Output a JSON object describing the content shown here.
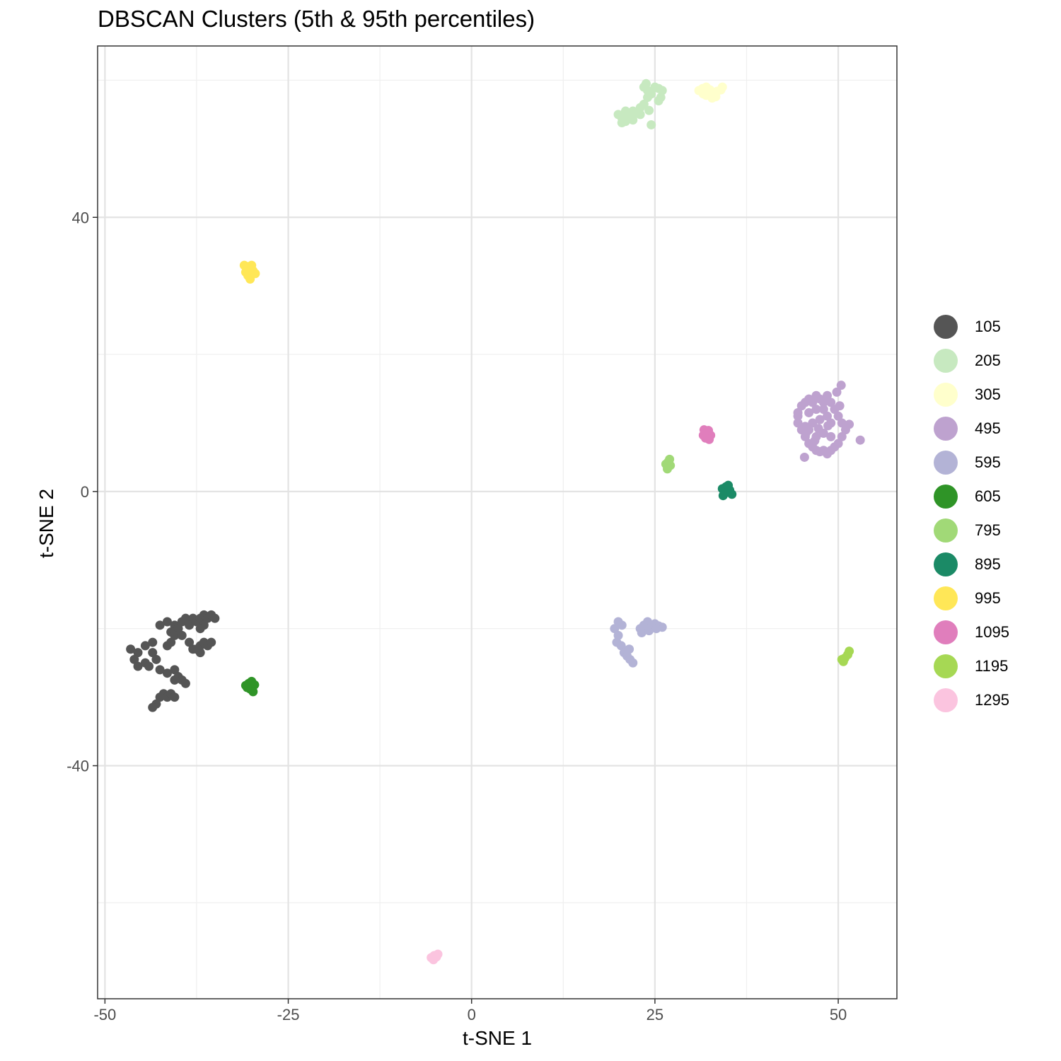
{
  "chart_data": {
    "type": "scatter",
    "title": "DBSCAN Clusters (5th & 95th percentiles)",
    "xlabel": "t-SNE 1",
    "ylabel": "t-SNE 2",
    "xlim": [
      -51,
      58
    ],
    "ylim": [
      -74,
      65
    ],
    "x_ticks": [
      -50,
      -25,
      0,
      25,
      50
    ],
    "x_tick_labels": [
      "-50",
      "-25",
      "0",
      "25",
      "50"
    ],
    "y_ticks": [
      40,
      0,
      -40
    ],
    "y_tick_labels": [
      "40",
      "0",
      "-40"
    ],
    "grid": true,
    "legend_position": "right",
    "series": [
      {
        "name": "105",
        "color": "#555555",
        "points": [
          [
            -46.5,
            -23
          ],
          [
            -45.5,
            -23.5
          ],
          [
            -46,
            -24.5
          ],
          [
            -45.5,
            -25.5
          ],
          [
            -44.5,
            -25
          ],
          [
            -44,
            -25.5
          ],
          [
            -43.5,
            -23.5
          ],
          [
            -43,
            -24.5
          ],
          [
            -44.5,
            -22.5
          ],
          [
            -43.5,
            -22
          ],
          [
            -42.5,
            -19.5
          ],
          [
            -41.5,
            -19
          ],
          [
            -40.5,
            -19.5
          ],
          [
            -41,
            -20.5
          ],
          [
            -40,
            -20
          ],
          [
            -39.5,
            -19
          ],
          [
            -39,
            -18.5
          ],
          [
            -38.5,
            -19.5
          ],
          [
            -38,
            -18.5
          ],
          [
            -37.5,
            -19
          ],
          [
            -37,
            -18.5
          ],
          [
            -36.5,
            -18
          ],
          [
            -36,
            -18.5
          ],
          [
            -35.5,
            -18
          ],
          [
            -35,
            -18.5
          ],
          [
            -36.5,
            -19.5
          ],
          [
            -37,
            -20
          ],
          [
            -41,
            -22
          ],
          [
            -41.5,
            -22.5
          ],
          [
            -40.5,
            -21
          ],
          [
            -39.5,
            -21
          ],
          [
            -38.5,
            -22
          ],
          [
            -38,
            -23
          ],
          [
            -37.5,
            -23
          ],
          [
            -37,
            -22.5
          ],
          [
            -36.5,
            -22
          ],
          [
            -36,
            -22.5
          ],
          [
            -35.5,
            -22
          ],
          [
            -37,
            -23.5
          ],
          [
            -42.5,
            -26
          ],
          [
            -41.5,
            -26.5
          ],
          [
            -40.5,
            -26
          ],
          [
            -40,
            -27
          ],
          [
            -39.5,
            -27.5
          ],
          [
            -39,
            -28
          ],
          [
            -40.5,
            -27.5
          ],
          [
            -42,
            -29.5
          ],
          [
            -42.5,
            -30
          ],
          [
            -43,
            -31
          ],
          [
            -43.5,
            -31.5
          ],
          [
            -41.5,
            -30
          ],
          [
            -41,
            -29.5
          ],
          [
            -40.5,
            -30
          ]
        ]
      },
      {
        "name": "205",
        "color": "#c7e9c0",
        "points": [
          [
            20,
            55
          ],
          [
            20.5,
            54.5
          ],
          [
            21,
            55.5
          ],
          [
            21.5,
            55
          ],
          [
            22,
            55.5
          ],
          [
            22.5,
            55.2
          ],
          [
            23,
            56
          ],
          [
            23.5,
            56.5
          ],
          [
            24,
            57.5
          ],
          [
            24.5,
            58
          ],
          [
            24,
            58.5
          ],
          [
            23.5,
            59
          ],
          [
            23.8,
            59.5
          ],
          [
            25,
            59
          ],
          [
            25.5,
            58.8
          ],
          [
            26,
            58.5
          ],
          [
            25.8,
            57.5
          ],
          [
            25.5,
            57
          ],
          [
            21,
            54
          ],
          [
            20.5,
            53.8
          ],
          [
            22,
            54.2
          ],
          [
            24.5,
            53.5
          ],
          [
            23,
            55
          ],
          [
            24.2,
            55.6
          ]
        ]
      },
      {
        "name": "305",
        "color": "#ffffcc",
        "points": [
          [
            31,
            58.5
          ],
          [
            31.5,
            58.8
          ],
          [
            32,
            59
          ],
          [
            32.5,
            58.6
          ],
          [
            33,
            58.2
          ],
          [
            33.5,
            58.4
          ],
          [
            34,
            58.6
          ],
          [
            32,
            57.8
          ],
          [
            32.8,
            57.4
          ],
          [
            33.3,
            57.6
          ],
          [
            31.6,
            58
          ],
          [
            34.2,
            59
          ]
        ]
      },
      {
        "name": "495",
        "color": "#bea2cf",
        "points": [
          [
            44.5,
            11.5
          ],
          [
            45,
            12.5
          ],
          [
            45.5,
            13
          ],
          [
            46,
            13.5
          ],
          [
            46.5,
            13
          ],
          [
            47,
            14
          ],
          [
            47.5,
            13.5
          ],
          [
            48,
            13
          ],
          [
            48.5,
            14
          ],
          [
            49,
            13
          ],
          [
            49.5,
            12
          ],
          [
            50,
            11
          ],
          [
            50.5,
            10
          ],
          [
            51,
            9
          ],
          [
            50.5,
            8
          ],
          [
            50,
            7
          ],
          [
            49.5,
            6.5
          ],
          [
            49,
            6
          ],
          [
            48.5,
            5.5
          ],
          [
            48,
            6
          ],
          [
            47.5,
            5.8
          ],
          [
            47,
            6
          ],
          [
            46.5,
            6.5
          ],
          [
            46,
            7
          ],
          [
            45.5,
            8
          ],
          [
            45,
            9
          ],
          [
            44.5,
            10
          ],
          [
            44.5,
            11
          ],
          [
            45.5,
            9.5
          ],
          [
            46.5,
            10
          ],
          [
            47.5,
            10.5
          ],
          [
            48.5,
            11
          ],
          [
            46,
            11.5
          ],
          [
            47,
            12
          ],
          [
            48,
            12
          ],
          [
            49,
            10
          ],
          [
            47,
            8
          ],
          [
            48,
            8.5
          ],
          [
            49,
            8
          ],
          [
            46,
            9
          ],
          [
            45.6,
            8.5
          ],
          [
            50.2,
            12.5
          ],
          [
            49.8,
            14.5
          ],
          [
            50.4,
            15.5
          ],
          [
            45.4,
            5
          ],
          [
            53,
            7.5
          ],
          [
            51.5,
            9.8
          ],
          [
            47.3,
            9.2
          ],
          [
            48.6,
            9.6
          ],
          [
            46.8,
            7.4
          ]
        ]
      },
      {
        "name": "595",
        "color": "#b3b3d6",
        "points": [
          [
            19.5,
            -20
          ],
          [
            20,
            -19
          ],
          [
            20.5,
            -19.5
          ],
          [
            20,
            -21
          ],
          [
            19.8,
            -22
          ],
          [
            20.4,
            -22.5
          ],
          [
            20.8,
            -23.5
          ],
          [
            21.2,
            -24
          ],
          [
            21.6,
            -24.5
          ],
          [
            22,
            -25
          ],
          [
            21.5,
            -23
          ],
          [
            23,
            -20
          ],
          [
            23.5,
            -19.5
          ],
          [
            24,
            -19
          ],
          [
            24.5,
            -19.8
          ],
          [
            25,
            -19.3
          ],
          [
            25.5,
            -19.6
          ],
          [
            26,
            -19.8
          ],
          [
            23.2,
            -20.6
          ],
          [
            24.2,
            -20.3
          ],
          [
            25.2,
            -20
          ]
        ]
      },
      {
        "name": "605",
        "color": "#2f9427",
        "points": [
          [
            -30.8,
            -28.3
          ],
          [
            -30.4,
            -28
          ],
          [
            -30,
            -27.7
          ],
          [
            -29.6,
            -28.2
          ],
          [
            -30.2,
            -28.8
          ],
          [
            -29.8,
            -29.2
          ],
          [
            -30.6,
            -28.6
          ]
        ]
      },
      {
        "name": "795",
        "color": "#a1d977",
        "points": [
          [
            26.5,
            4
          ],
          [
            26.8,
            4.3
          ],
          [
            27.1,
            3.8
          ],
          [
            26.7,
            3.3
          ],
          [
            27,
            4.7
          ]
        ]
      },
      {
        "name": "895",
        "color": "#1b8a66",
        "points": [
          [
            34.2,
            0.4
          ],
          [
            34.7,
            0.7
          ],
          [
            35.2,
            0.2
          ],
          [
            34.6,
            -0.2
          ],
          [
            35.5,
            -0.4
          ],
          [
            34.3,
            -0.6
          ],
          [
            35,
            0.9
          ]
        ]
      },
      {
        "name": "995",
        "color": "#ffe757",
        "points": [
          [
            -31,
            33
          ],
          [
            -30.5,
            32.8
          ],
          [
            -30,
            33
          ],
          [
            -29.8,
            32.2
          ],
          [
            -30.5,
            31.5
          ],
          [
            -30.2,
            31
          ],
          [
            -29.5,
            31.8
          ],
          [
            -30.8,
            32
          ]
        ]
      },
      {
        "name": "1095",
        "color": "#e07ebc",
        "points": [
          [
            31.6,
            8.2
          ],
          [
            32,
            8.5
          ],
          [
            32.3,
            8.9
          ],
          [
            32.6,
            8.2
          ],
          [
            31.9,
            7.8
          ],
          [
            32.4,
            7.6
          ],
          [
            31.7,
            9
          ]
        ]
      },
      {
        "name": "1195",
        "color": "#a6d854",
        "points": [
          [
            50.5,
            -24.5
          ],
          [
            50.9,
            -24.3
          ],
          [
            51.3,
            -23.8
          ],
          [
            50.7,
            -24.8
          ],
          [
            51.5,
            -23.3
          ]
        ]
      },
      {
        "name": "1295",
        "color": "#fbc4df",
        "points": [
          [
            -5.5,
            -68
          ],
          [
            -5.1,
            -67.7
          ],
          [
            -4.6,
            -67.5
          ],
          [
            -5.2,
            -68.3
          ],
          [
            -4.8,
            -67.9
          ]
        ]
      }
    ]
  }
}
